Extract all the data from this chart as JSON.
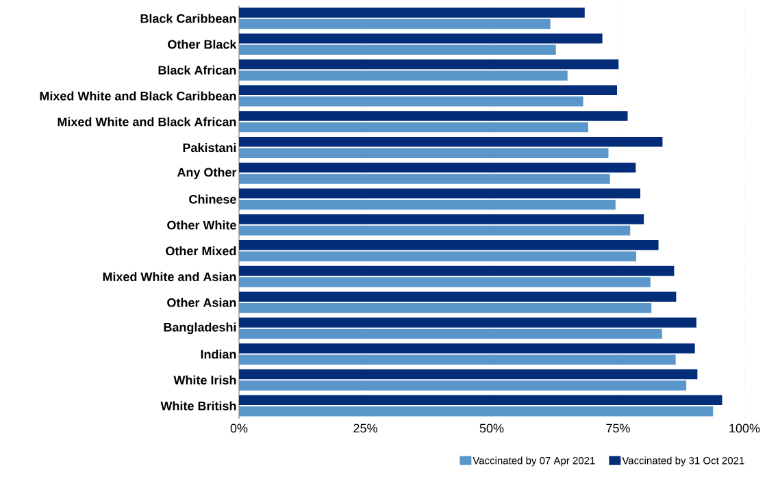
{
  "chart_data": {
    "type": "bar",
    "orientation": "horizontal",
    "categories": [
      "Black Caribbean",
      "Other Black",
      "Black African",
      "Mixed White and Black Caribbean",
      "Mixed White and Black African",
      "Pakistani",
      "Any Other",
      "Chinese",
      "Other White",
      "Other Mixed",
      "Mixed White and Asian",
      "Other Asian",
      "Bangladeshi",
      "Indian",
      "White Irish",
      "White British"
    ],
    "series": [
      {
        "name": "Vaccinated by 07 Apr 2021",
        "color": "#5a96c9",
        "values": [
          61.6,
          62.7,
          65.0,
          68.1,
          69.1,
          73.1,
          73.4,
          74.5,
          77.4,
          78.6,
          81.4,
          81.6,
          83.7,
          86.4,
          88.5,
          93.8
        ]
      },
      {
        "name": "Vaccinated by 31 Oct 2021",
        "color": "#032d78",
        "values": [
          68.4,
          71.9,
          75.1,
          74.8,
          76.9,
          83.8,
          78.5,
          79.4,
          80.1,
          83.0,
          86.1,
          86.5,
          90.5,
          90.2,
          90.7,
          95.6
        ]
      }
    ],
    "xlim": [
      0,
      100
    ],
    "xticks": [
      {
        "value": 0,
        "label": "0%"
      },
      {
        "value": 25,
        "label": "25%"
      },
      {
        "value": 50,
        "label": "50%"
      },
      {
        "value": 75,
        "label": "75%"
      },
      {
        "value": 100,
        "label": "100%"
      }
    ],
    "grid": "x",
    "legend": "bottom"
  }
}
